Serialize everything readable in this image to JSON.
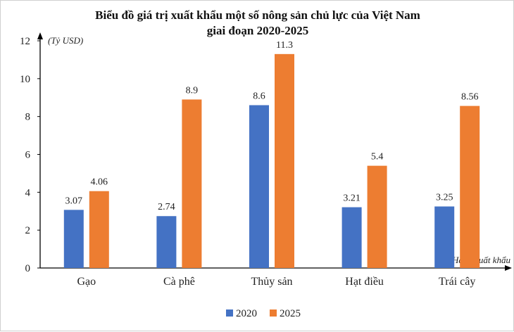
{
  "chart_data": {
    "type": "bar",
    "title_line1": "Biểu đồ giá trị xuất khẩu một số nông sản chủ lực của Việt Nam",
    "title_line2": "giai đoạn 2020-2025",
    "ylabel": "(Tỷ USD)",
    "xlabel": "Hàng xuất khẩu",
    "ylim": [
      0,
      12
    ],
    "yticks": [
      0,
      2,
      4,
      6,
      8,
      10,
      12
    ],
    "categories": [
      "Gạo",
      "Cà phê",
      "Thủy sản",
      "Hạt điều",
      "Trái cây"
    ],
    "series": [
      {
        "name": "2020",
        "color": "#4472C4",
        "values": [
          3.07,
          2.74,
          8.6,
          3.21,
          3.25
        ],
        "labels": [
          "3.07",
          "2.74",
          "8.6",
          "3.21",
          "3.25"
        ]
      },
      {
        "name": "2025",
        "color": "#ED7D31",
        "values": [
          4.06,
          8.9,
          11.3,
          5.4,
          8.56
        ],
        "labels": [
          "4.06",
          "8.9",
          "11.3",
          "5.4",
          "8.56"
        ]
      }
    ],
    "grid": false,
    "legend_position": "bottom-center"
  }
}
